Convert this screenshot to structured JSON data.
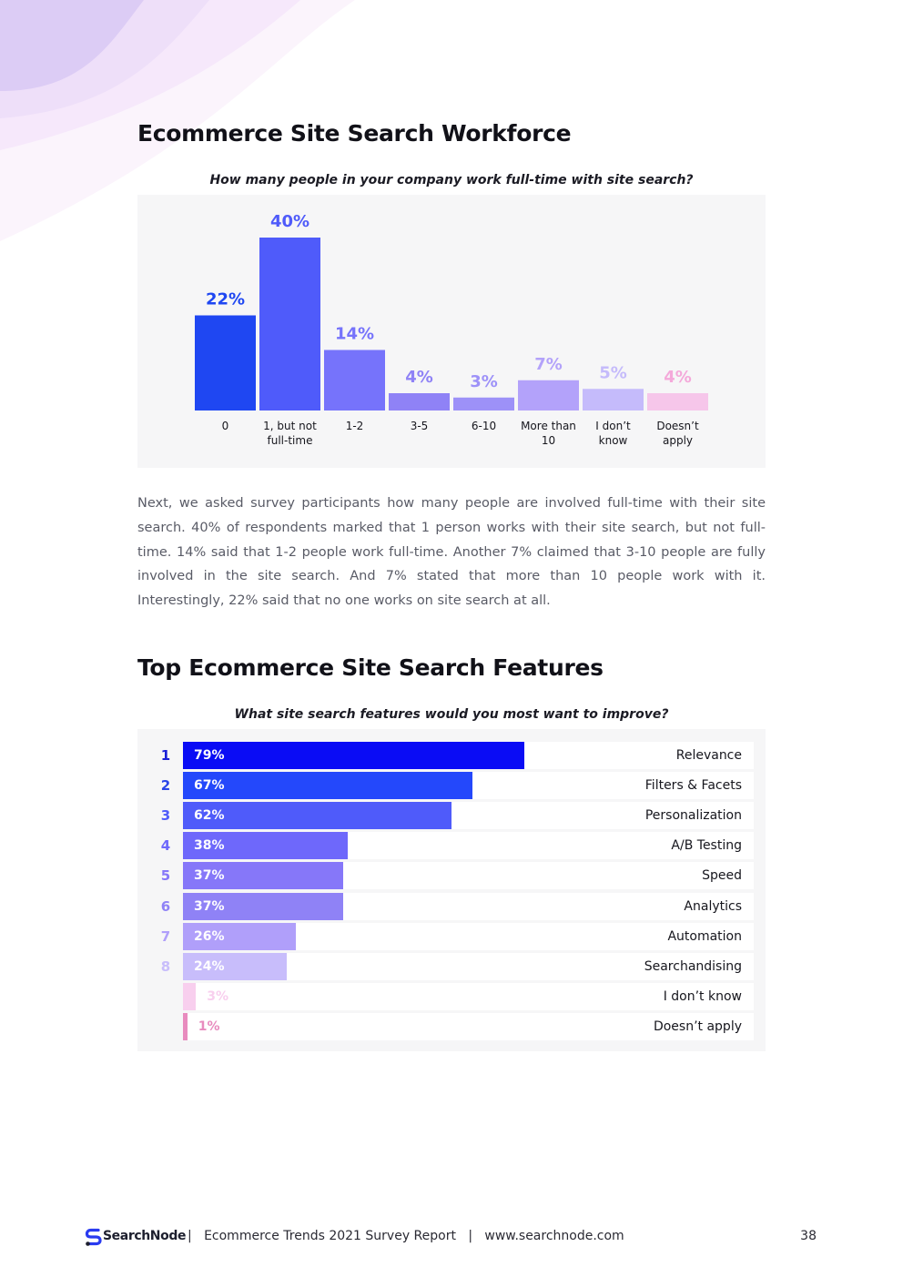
{
  "workforce": {
    "title": "Ecommerce Site Search Workforce",
    "question": "How many people in your company work full-time with site search?"
  },
  "chart_data": [
    {
      "type": "bar",
      "title": "How many people in your company work full-time with site search?",
      "categories": [
        [
          "0"
        ],
        [
          "1, but not",
          "full-time"
        ],
        [
          "1-2"
        ],
        [
          "3-5"
        ],
        [
          "6-10"
        ],
        [
          "More than",
          "10"
        ],
        [
          "I don’t",
          "know"
        ],
        [
          "Doesn’t",
          "apply"
        ]
      ],
      "values": [
        22,
        40,
        14,
        4,
        3,
        7,
        5,
        4
      ],
      "labels": [
        "22%",
        "40%",
        "14%",
        "4%",
        "3%",
        "7%",
        "5%",
        "4%"
      ],
      "colors": [
        "#1f47f2",
        "#4f5bfa",
        "#7673fb",
        "#8f82f6",
        "#9d91f8",
        "#b3a2fa",
        "#c5bbfb",
        "#f6c6ea"
      ],
      "label_colors": [
        "#1f47f2",
        "#4f5bfa",
        "#7673fb",
        "#8f82f6",
        "#9d91f8",
        "#b3a2fa",
        "#c5bbfb",
        "#f4a9da"
      ],
      "ylim": [
        0,
        40
      ],
      "grid": false
    },
    {
      "type": "bar",
      "orientation": "horizontal",
      "title": "What site search features would you most want to improve?",
      "categories": [
        "Relevance",
        "Filters & Facets",
        "Personalization",
        "A/B Testing",
        "Speed",
        "Analytics",
        "Automation",
        "Searchandising",
        "I don’t know",
        "Doesn’t apply"
      ],
      "ranks": [
        "1",
        "2",
        "3",
        "4",
        "5",
        "6",
        "7",
        "8",
        "",
        ""
      ],
      "values": [
        79,
        67,
        62,
        38,
        37,
        37,
        26,
        24,
        3,
        1
      ],
      "labels": [
        "79%",
        "67%",
        "62%",
        "38%",
        "37%",
        "37%",
        "26%",
        "24%",
        "3%",
        "1%"
      ],
      "colors": [
        "#0a0cf5",
        "#2448fb",
        "#4f5bfa",
        "#6e68fb",
        "#8677f9",
        "#8f82f6",
        "#b09ffa",
        "#c8bdfb",
        "#f8cfee",
        "#e88bbe"
      ],
      "rank_colors": [
        "#1a1fd6",
        "#2a45e8",
        "#4f5bfa",
        "#6e68fb",
        "#8677f9",
        "#8f82f6",
        "#b09ffa",
        "#c8bdfb",
        "",
        ""
      ],
      "xlim": [
        0,
        100
      ],
      "grid": false
    }
  ],
  "body_text": "Next, we asked survey participants how many people are involved full-time with their site search. 40% of respondents marked that 1 person works with their site search, but not full-time. 14% said that 1-2 people work full-time.  Another 7% claimed that 3-10 people are fully involved in the site search. And 7% stated that more than 10 people work with it. Interestingly, 22% said that no one works on site search at all.",
  "features": {
    "title": "Top Ecommerce Site Search Features",
    "question": "What site search features would you most want to improve?"
  },
  "footer": {
    "brand": "SearchNode",
    "text": "|   Ecommerce Trends 2021 Survey Report   |   www.searchnode.com",
    "page": "38"
  },
  "colors": {
    "deco": "#e9dcfa",
    "panel": "#f6f6f7",
    "text_muted": "#595b66"
  }
}
